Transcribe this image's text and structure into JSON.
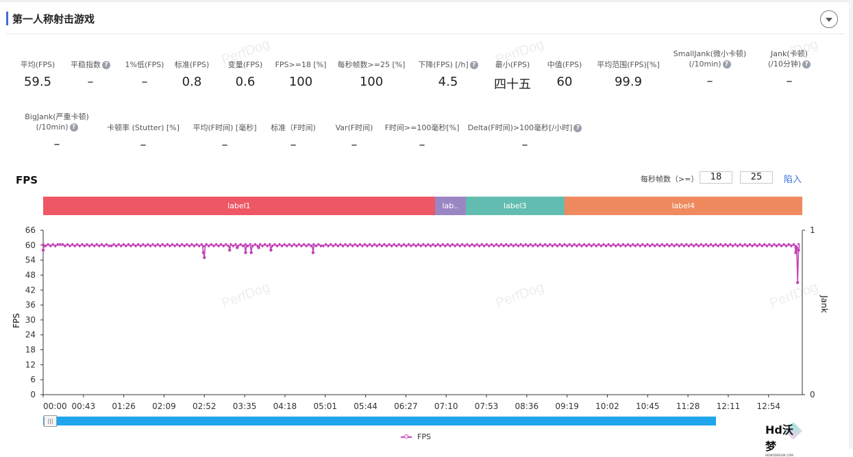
{
  "panel": {
    "title": "第一人称射击游戏"
  },
  "metrics_row1": [
    {
      "label": "平均(FPS)",
      "value": "59.5",
      "help": false
    },
    {
      "label": "平稳指数",
      "value": "–",
      "help": true
    },
    {
      "label": "1%低(FPS)",
      "value": "–",
      "help": false
    },
    {
      "label": "标准(FPS)",
      "value": "0.8",
      "help": false
    },
    {
      "label": "变量(FPS)",
      "value": "0.6",
      "help": false
    },
    {
      "label": "FPS>=18 [%]",
      "value": "100",
      "help": false
    },
    {
      "label": "每秒帧数>=25 [%]",
      "value": "100",
      "help": false
    },
    {
      "label": "下降(FPS) [/h]",
      "value": "4.5",
      "help": true
    },
    {
      "label": "最小(FPS)",
      "value": "四十五",
      "help": false
    },
    {
      "label": "中值(FPS)",
      "value": "60",
      "help": false
    },
    {
      "label": "平均范围(FPS)[%]",
      "value": "99.9",
      "help": false
    },
    {
      "label": "SmallJank(微小卡顿)",
      "label2": "(/10min)",
      "value": "–",
      "help": true
    },
    {
      "label": "Jank(卡顿)",
      "label2": "(/10分钟)",
      "value": "–",
      "help": true
    }
  ],
  "metrics_row2": [
    {
      "label": "BigJank(严重卡顿)",
      "label2": "(/10min)",
      "value": "–",
      "help": true
    },
    {
      "label": "卡顿率 (Stutter) [%]",
      "value": "–",
      "help": false
    },
    {
      "label": "平均(F时间) [毫秒]",
      "value": "–",
      "help": false
    },
    {
      "label": "标准（F时间)",
      "value": "–",
      "help": false
    },
    {
      "label": "Var(F时间)",
      "value": "–",
      "help": false
    },
    {
      "label": "F时间>=100毫秒[%]",
      "value": "–",
      "help": false
    },
    {
      "label": "Delta(F时间)>100毫秒[/小时]",
      "value": "–",
      "help": true
    }
  ],
  "watermark": "PerfDog",
  "fps_section": {
    "title": "FPS",
    "threshold_label": "每秒帧数（>=）",
    "threshold_low": "18",
    "threshold_high": "25",
    "import_label": "陷入"
  },
  "labels_bar": [
    {
      "name": "label1",
      "start": "00:00",
      "end": "06:58",
      "color": "#ee5766"
    },
    {
      "name": "lab..",
      "start": "06:58",
      "end": "07:31",
      "color": "#9b86c4"
    },
    {
      "name": "label3",
      "start": "07:31",
      "end": "09:16",
      "color": "#62bdb0"
    },
    {
      "name": "label4",
      "start": "09:16",
      "end": "13:30",
      "color": "#ef8a5f"
    }
  ],
  "legend": {
    "series": "FPS"
  },
  "logo": {
    "text": "Hd沃梦",
    "subtext": "HDWODREAM.COM"
  },
  "chart_data": {
    "type": "line",
    "xlabel": "",
    "ylabel": "FPS",
    "ylabel_right": "Jank",
    "ylim": [
      0,
      66
    ],
    "yticks": [
      0,
      6,
      12,
      18,
      24,
      30,
      36,
      42,
      48,
      54,
      60,
      66
    ],
    "y2lim": [
      0,
      1
    ],
    "y2ticks": [
      0,
      1
    ],
    "xticks": [
      "00:00",
      "00:43",
      "01:26",
      "02:09",
      "02:52",
      "03:35",
      "04:18",
      "05:01",
      "05:44",
      "06:27",
      "07:10",
      "07:53",
      "08:36",
      "09:19",
      "10:02",
      "10:45",
      "11:28",
      "12:11",
      "12:54"
    ],
    "grid": false,
    "color": "#c342b8",
    "series": [
      {
        "name": "FPS",
        "points": [
          [
            "00:00",
            58
          ],
          [
            "00:01",
            60
          ],
          [
            "00:43",
            60
          ],
          [
            "01:26",
            60
          ],
          [
            "02:09",
            60
          ],
          [
            "02:50",
            60
          ],
          [
            "02:51",
            57
          ],
          [
            "02:52",
            55
          ],
          [
            "02:53",
            60
          ],
          [
            "03:18",
            60
          ],
          [
            "03:19",
            58
          ],
          [
            "03:20",
            60
          ],
          [
            "03:26",
            60
          ],
          [
            "03:27",
            59
          ],
          [
            "03:28",
            60
          ],
          [
            "03:35",
            60
          ],
          [
            "03:36",
            57
          ],
          [
            "03:37",
            60
          ],
          [
            "03:41",
            60
          ],
          [
            "03:42",
            57
          ],
          [
            "03:43",
            60
          ],
          [
            "03:49",
            60
          ],
          [
            "03:50",
            59
          ],
          [
            "03:51",
            60
          ],
          [
            "04:02",
            60
          ],
          [
            "04:03",
            58
          ],
          [
            "04:04",
            60
          ],
          [
            "04:47",
            60
          ],
          [
            "04:48",
            57
          ],
          [
            "04:49",
            60
          ],
          [
            "05:44",
            60
          ],
          [
            "06:27",
            60
          ],
          [
            "07:10",
            60
          ],
          [
            "07:53",
            60
          ],
          [
            "08:36",
            60
          ],
          [
            "09:19",
            60
          ],
          [
            "10:02",
            60
          ],
          [
            "10:45",
            60
          ],
          [
            "11:28",
            60
          ],
          [
            "12:11",
            60
          ],
          [
            "12:54",
            60
          ],
          [
            "13:22",
            60
          ],
          [
            "13:23",
            57
          ],
          [
            "13:24",
            59
          ],
          [
            "13:25",
            45
          ],
          [
            "13:26",
            58
          ],
          [
            "13:27",
            60
          ]
        ]
      }
    ]
  }
}
